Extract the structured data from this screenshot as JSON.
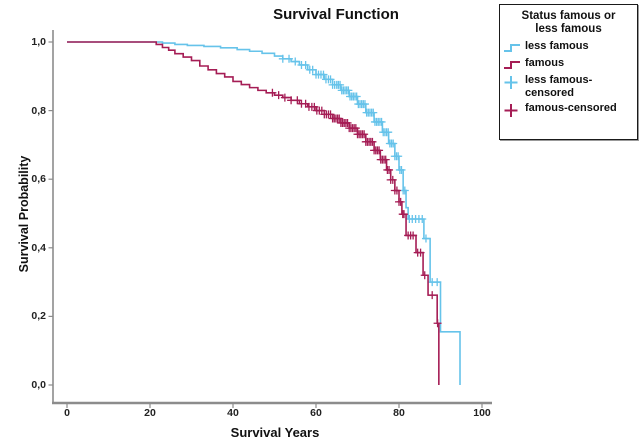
{
  "title": "Survival Function",
  "legend": {
    "title_line1": "Status famous or",
    "title_line2": "less famous",
    "entries": [
      {
        "label": "less famous",
        "marker": "step-line",
        "color": "#66C3EA"
      },
      {
        "label": "famous",
        "marker": "step-line",
        "color": "#A51D55"
      },
      {
        "label": "less famous-censored",
        "marker": "plus-cross",
        "color": "#66C3EA"
      },
      {
        "label": "famous-censored",
        "marker": "plus-cross",
        "color": "#A51D55"
      }
    ]
  },
  "chart_data": {
    "type": "line",
    "subtype": "kaplan-meier-step-survival",
    "title": "Survival Function",
    "xlabel": "Survival Years",
    "ylabel": "Survival Probability",
    "xlim": [
      0,
      100
    ],
    "ylim": [
      0.0,
      1.0
    ],
    "grid": false,
    "legend_position": "outside-top-right",
    "x_ticks": {
      "values": [
        0,
        20,
        40,
        60,
        80,
        100
      ],
      "labels": [
        "0",
        "20",
        "40",
        "60",
        "80",
        "100"
      ]
    },
    "y_ticks": {
      "values": [
        1.0,
        0.8,
        0.6,
        0.4,
        0.2,
        0.0
      ],
      "labels": [
        "1,0",
        "0,8",
        "0,6",
        "0,4",
        "0,2",
        "0,0"
      ]
    },
    "axis_color": "#8c8c8c",
    "series": [
      {
        "name": "less famous",
        "color": "#66C3EA",
        "steps": [
          [
            0,
            1.0
          ],
          [
            21,
            1.0
          ],
          [
            23,
            0.997
          ],
          [
            26,
            0.993
          ],
          [
            29,
            0.99
          ],
          [
            33,
            0.987
          ],
          [
            37,
            0.983
          ],
          [
            41,
            0.978
          ],
          [
            44,
            0.973
          ],
          [
            47,
            0.967
          ],
          [
            50,
            0.959
          ],
          [
            52,
            0.951
          ],
          [
            54,
            0.943
          ],
          [
            56,
            0.933
          ],
          [
            58,
            0.919
          ],
          [
            60,
            0.905
          ],
          [
            62,
            0.891
          ],
          [
            64,
            0.875
          ],
          [
            66,
            0.859
          ],
          [
            68,
            0.841
          ],
          [
            70,
            0.819
          ],
          [
            72,
            0.794
          ],
          [
            74,
            0.767
          ],
          [
            76,
            0.737
          ],
          [
            77.5,
            0.704
          ],
          [
            79,
            0.667
          ],
          [
            80,
            0.627
          ],
          [
            81,
            0.567
          ],
          [
            81.7,
            0.517
          ],
          [
            82.2,
            0.484
          ],
          [
            86,
            0.427
          ],
          [
            87.5,
            0.3
          ],
          [
            90,
            0.155
          ],
          [
            94.7,
            0.0
          ]
        ],
        "censored_years": [
          52,
          53.5,
          55,
          56.5,
          57.5,
          58.5,
          59.2,
          60,
          60.6,
          61.2,
          61.8,
          62.4,
          63,
          63.5,
          64,
          64.5,
          65,
          65.4,
          65.8,
          66.2,
          66.6,
          67,
          67.4,
          67.8,
          68.2,
          68.6,
          69,
          69.4,
          69.8,
          70.2,
          70.6,
          71,
          71.4,
          71.8,
          72.2,
          72.6,
          73,
          73.4,
          73.8,
          74.2,
          74.6,
          75,
          75.4,
          75.8,
          76.2,
          76.6,
          77,
          77.4,
          77.8,
          78.2,
          78.6,
          79,
          79.4,
          79.8,
          80.2,
          80.6,
          81,
          81.4,
          82.5,
          83.2,
          84,
          84.8,
          85.6,
          86.5,
          88,
          89.2
        ]
      },
      {
        "name": "famous",
        "color": "#A51D55",
        "steps": [
          [
            0,
            1.0
          ],
          [
            20,
            1.0
          ],
          [
            21.5,
            0.993
          ],
          [
            23,
            0.984
          ],
          [
            24.5,
            0.976
          ],
          [
            26,
            0.966
          ],
          [
            28,
            0.956
          ],
          [
            30,
            0.946
          ],
          [
            32,
            0.93
          ],
          [
            34,
            0.919
          ],
          [
            36,
            0.908
          ],
          [
            38,
            0.898
          ],
          [
            40,
            0.885
          ],
          [
            42,
            0.876
          ],
          [
            44,
            0.867
          ],
          [
            46,
            0.859
          ],
          [
            48,
            0.852
          ],
          [
            50,
            0.845
          ],
          [
            52,
            0.838
          ],
          [
            54,
            0.83
          ],
          [
            56,
            0.82
          ],
          [
            58,
            0.811
          ],
          [
            60,
            0.8
          ],
          [
            62,
            0.789
          ],
          [
            64,
            0.777
          ],
          [
            66,
            0.764
          ],
          [
            68,
            0.749
          ],
          [
            70,
            0.731
          ],
          [
            72,
            0.709
          ],
          [
            74,
            0.684
          ],
          [
            75.5,
            0.657
          ],
          [
            77,
            0.627
          ],
          [
            78,
            0.598
          ],
          [
            79,
            0.567
          ],
          [
            80,
            0.534
          ],
          [
            80.7,
            0.498
          ],
          [
            81.7,
            0.436
          ],
          [
            84.1,
            0.386
          ],
          [
            85.8,
            0.32
          ],
          [
            87,
            0.262
          ],
          [
            89.2,
            0.18
          ],
          [
            89.6,
            0.0
          ]
        ],
        "censored_years": [
          49.5,
          51,
          52.5,
          54,
          55.5,
          56.5,
          57.5,
          58.3,
          59,
          59.6,
          60.2,
          60.8,
          61.4,
          62,
          62.5,
          63,
          63.5,
          64,
          64.4,
          64.8,
          65.2,
          65.6,
          66,
          66.4,
          66.8,
          67.2,
          67.6,
          68,
          68.4,
          68.8,
          69.2,
          69.6,
          70,
          70.4,
          70.8,
          71.2,
          71.6,
          72,
          72.4,
          72.8,
          73.2,
          73.6,
          74,
          74.4,
          74.8,
          75.2,
          75.6,
          76,
          76.4,
          76.8,
          77.2,
          77.6,
          78,
          78.5,
          79,
          79.5,
          80,
          80.4,
          80.9,
          81.2,
          82.2,
          82.8,
          83.4,
          84.5,
          85.2,
          86.2,
          88,
          89.3
        ]
      }
    ]
  }
}
